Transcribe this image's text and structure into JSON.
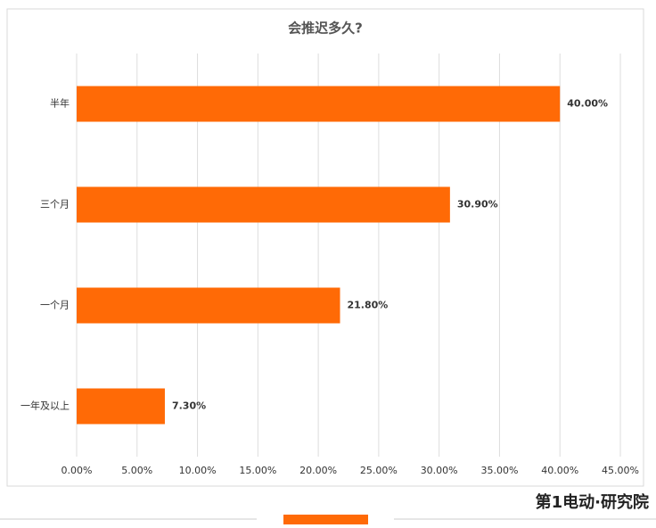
{
  "chart_data": {
    "type": "bar",
    "orientation": "horizontal",
    "title": "会推迟多久?",
    "categories": [
      "半年",
      "三个月",
      "一个月",
      "一年及以上"
    ],
    "values": [
      40,
      30.9,
      21.8,
      7.3
    ],
    "value_labels": [
      "40.00%",
      "30.90%",
      "21.80%",
      "7.30%"
    ],
    "color": "#ff6a06",
    "xlim": [
      0,
      45
    ],
    "xticks": [
      {
        "value": 0,
        "label": "0.00%"
      },
      {
        "value": 5,
        "label": "5.00%"
      },
      {
        "value": 10,
        "label": "10.00%"
      },
      {
        "value": 15,
        "label": "15.00%"
      },
      {
        "value": 20,
        "label": "20.00%"
      },
      {
        "value": 25,
        "label": "25.00%"
      },
      {
        "value": 30,
        "label": "30.00%"
      },
      {
        "value": 35,
        "label": "35.00%"
      },
      {
        "value": 40,
        "label": "40.00%"
      },
      {
        "value": 45,
        "label": "45.00%"
      }
    ],
    "grid": true
  },
  "footer": {
    "brand": "第1电动·研究院"
  }
}
